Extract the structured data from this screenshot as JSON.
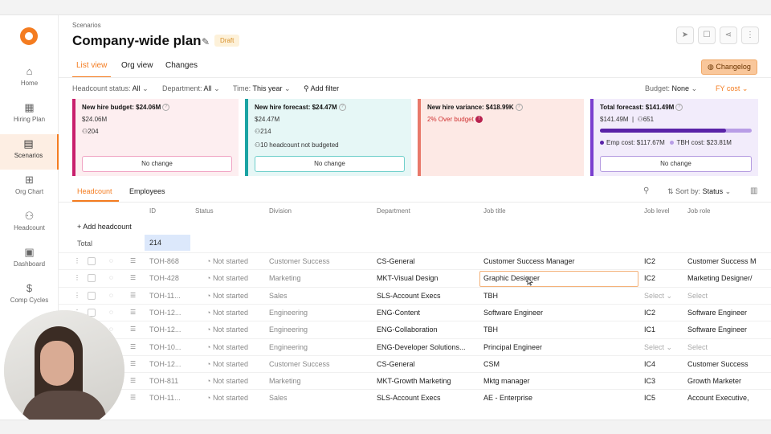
{
  "sidebar": {
    "items": [
      {
        "label": "Home",
        "icon": "home-icon",
        "glyph": "⌂"
      },
      {
        "label": "Hiring Plan",
        "icon": "calendar-icon",
        "glyph": "▦"
      },
      {
        "label": "Scenarios",
        "icon": "scenarios-icon",
        "glyph": "▤"
      },
      {
        "label": "Org Chart",
        "icon": "org-chart-icon",
        "glyph": "⊞"
      },
      {
        "label": "Headcount",
        "icon": "people-icon",
        "glyph": "⚇"
      },
      {
        "label": "Dashboard",
        "icon": "dashboard-icon",
        "glyph": "▣"
      },
      {
        "label": "Comp Cycles",
        "icon": "dollar-icon",
        "glyph": "$"
      }
    ]
  },
  "header": {
    "breadcrumb": "Scenarios",
    "title": "Company-wide plan",
    "badge": "Draft",
    "changelog": "Changelog"
  },
  "tabs": [
    "List view",
    "Org view",
    "Changes"
  ],
  "filters": {
    "headcount_status_label": "Headcount status:",
    "headcount_status_value": "All",
    "department_label": "Department:",
    "department_value": "All",
    "time_label": "Time:",
    "time_value": "This year",
    "add_filter": "Add filter",
    "budget_label": "Budget:",
    "budget_value": "None",
    "fy_cost": "FY cost"
  },
  "cards": {
    "budget": {
      "label": "New hire budget: $24.06M",
      "amount": "$24.06M",
      "count": "204",
      "button": "No change"
    },
    "forecast": {
      "label": "New hire forecast: $24.47M",
      "amount": "$24.47M",
      "count": "214",
      "note": "10 headcount not budgeted",
      "button": "No change"
    },
    "variance": {
      "label": "New hire variance: $418.99K",
      "status": "2% Over budget"
    },
    "total": {
      "label": "Total forecast: $141.49M",
      "amount": "$141.49M",
      "count": "651",
      "emp_cost": "Emp cost: $117.67M",
      "tbh_cost": "TBH cost: $23.81M",
      "emp_share": 0.832,
      "button": "No change"
    }
  },
  "colors": {
    "accent": "#f47c20",
    "budget": "#c81f6c",
    "forecast": "#1aa3a3",
    "variance": "#e8796a",
    "total": "#7a3fcf",
    "emp_bar": "#5a23a8",
    "tbh_bar": "#b89de6"
  },
  "table": {
    "tabs": [
      "Headcount",
      "Employees"
    ],
    "sort_label": "Sort by:",
    "sort_value": "Status",
    "columns": [
      "ID",
      "Status",
      "Division",
      "Department",
      "Job title",
      "Job level",
      "Job role"
    ],
    "add_headcount": "+ Add headcount",
    "total_label": "Total",
    "total_value": "214",
    "rows": [
      {
        "id": "TOH-868",
        "status": "Not started",
        "division": "Customer Success",
        "department": "CS-General",
        "job_title": "Customer Success Manager",
        "job_level": "IC2",
        "job_role": "Customer Success M"
      },
      {
        "id": "TOH-428",
        "status": "Not started",
        "division": "Marketing",
        "department": "MKT-Visual Design",
        "job_title": "Graphic Designer",
        "job_level": "IC2",
        "job_role": "Marketing Designer/"
      },
      {
        "id": "TOH-11...",
        "status": "Not started",
        "division": "Sales",
        "department": "SLS-Account Execs",
        "job_title": "TBH",
        "job_level": "Select",
        "job_role": "Select"
      },
      {
        "id": "TOH-12...",
        "status": "Not started",
        "division": "Engineering",
        "department": "ENG-Content",
        "job_title": "Software Engineer",
        "job_level": "IC2",
        "job_role": "Software Engineer"
      },
      {
        "id": "TOH-12...",
        "status": "Not started",
        "division": "Engineering",
        "department": "ENG-Collaboration",
        "job_title": "TBH",
        "job_level": "IC1",
        "job_role": "Software Engineer"
      },
      {
        "id": "TOH-10...",
        "status": "Not started",
        "division": "Engineering",
        "department": "ENG-Developer Solutions...",
        "job_title": "Principal Engineer",
        "job_level": "Select",
        "job_role": "Select"
      },
      {
        "id": "TOH-12...",
        "status": "Not started",
        "division": "Customer Success",
        "department": "CS-General",
        "job_title": "CSM",
        "job_level": "IC4",
        "job_role": "Customer Success"
      },
      {
        "id": "TOH-811",
        "status": "Not started",
        "division": "Marketing",
        "department": "MKT-Growth Marketing",
        "job_title": "Mktg manager",
        "job_level": "IC3",
        "job_role": "Growth Marketer"
      },
      {
        "id": "TOH-11...",
        "status": "Not started",
        "division": "Sales",
        "department": "SLS-Account Execs",
        "job_title": "AE - Enterprise",
        "job_level": "IC5",
        "job_role": "Account Executive,"
      }
    ]
  }
}
